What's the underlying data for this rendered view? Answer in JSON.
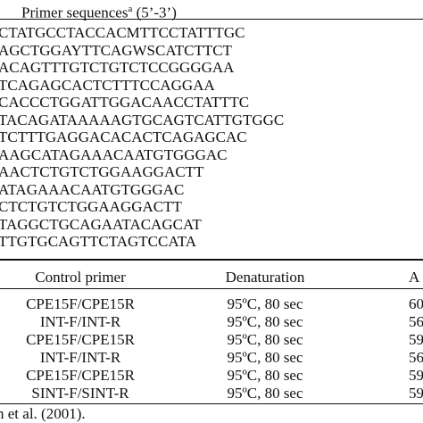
{
  "primer_table": {
    "header": {
      "label": "Primer sequences",
      "superscript": "a",
      "orientation": "(5’-3’)"
    },
    "sequences": [
      "CTATGCCTACCACMTTCCTATTTGC",
      "AGCTGGAYTTCAGWSCATCTTCT",
      "ACAGTTTGTCTGTCTCCGGGGAA",
      "TCAGAGCACTCTTTCCAGGAA",
      "CACCCTGGATTGGACAACCTATTTC",
      "TACAGATAAAAAGTGCAGTCATTGTGGC",
      "TCTTTGAGGACACACTCAGAGCAC",
      "AAGCATAGAAACAATGTGGGAC",
      "AACTCTGTCTGGAAGGACTT",
      "ATAGAAACAATGTGGGAC",
      "CTCTGTCTGGAAGGACTT",
      "TAGGCTGCAGAATACAGCAT",
      "TTGTGCAGTTCTAGTCCATA"
    ]
  },
  "condition_table": {
    "columns": [
      "Control primer",
      "Denaturation",
      "A"
    ],
    "rows": [
      [
        "CPE15F/CPE15R",
        "95ºC, 80 sec",
        "60"
      ],
      [
        "INT-F/INT-R",
        "95ºC, 80 sec",
        "56"
      ],
      [
        "CPE15F/CPE15R",
        "95ºC, 80 sec",
        "59"
      ],
      [
        "INT-F/INT-R",
        "95ºC, 80 sec",
        "56"
      ],
      [
        "CPE15F/CPE15R",
        "95ºC, 80 sec",
        "59"
      ],
      [
        "SINT-F/SINT-R",
        "95ºC, 80 sec",
        "59"
      ]
    ]
  },
  "footnote": "n et al. (2001)."
}
